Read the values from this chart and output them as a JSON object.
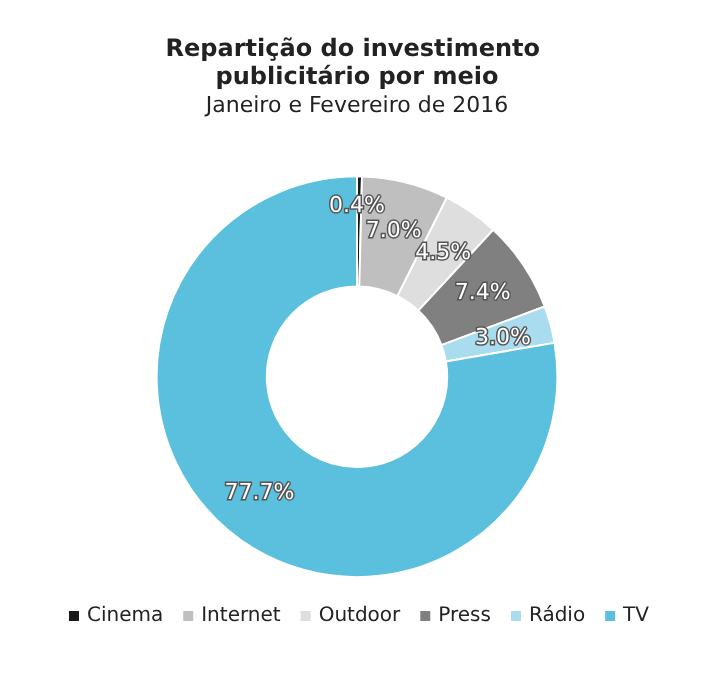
{
  "chart_data": {
    "type": "donut",
    "title": "Repartição do investimento publicitário por meio",
    "subtitle": "Janeiro e Fevereiro de 2016",
    "categories": [
      "Cinema",
      "Internet",
      "Outdoor",
      "Press",
      "Rádio",
      "TV"
    ],
    "values": [
      0.4,
      7.0,
      4.5,
      7.4,
      3.0,
      77.7
    ],
    "colors": [
      "#1a1a1a",
      "#bfbfbf",
      "#dedede",
      "#808080",
      "#a8dcee",
      "#5bc0de"
    ],
    "value_labels": [
      "0.4%",
      "7.0%",
      "4.5%",
      "7.4%",
      "3.0%",
      "77.7%"
    ],
    "legend": "bottom"
  }
}
